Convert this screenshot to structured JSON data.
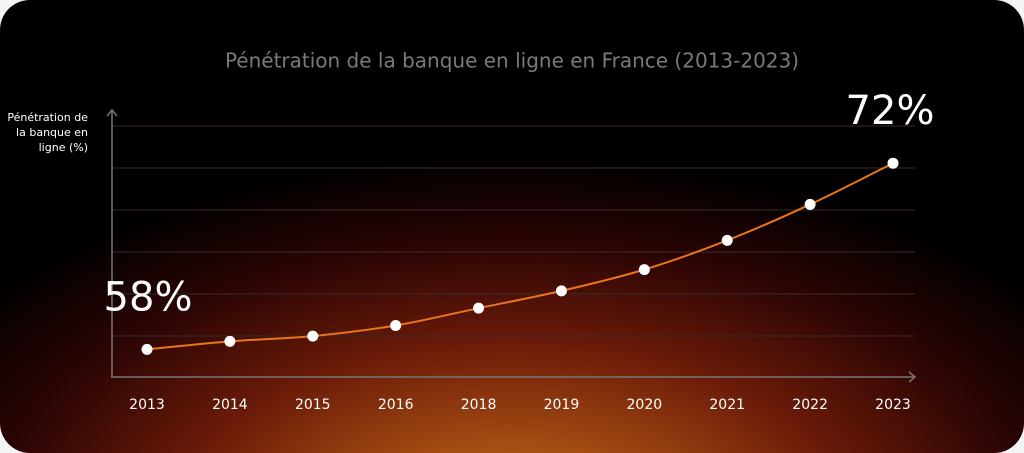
{
  "chart_data": {
    "type": "line",
    "title": "Pénétration de la banque en ligne en France (2013-2023)",
    "y_label": "Pénétration de la banque en ligne (%)",
    "categories": [
      "2013",
      "2014",
      "2015",
      "2016",
      "2018",
      "2019",
      "2020",
      "2021",
      "2022",
      "2023"
    ],
    "values": [
      58,
      58.6,
      59,
      59.8,
      61.1,
      62.4,
      64,
      66.2,
      68.9,
      72
    ],
    "value_labels": [
      "58%",
      null,
      null,
      null,
      null,
      null,
      null,
      null,
      null,
      "72%"
    ],
    "color": "#e8751a",
    "ylim": [
      56,
      76
    ]
  }
}
